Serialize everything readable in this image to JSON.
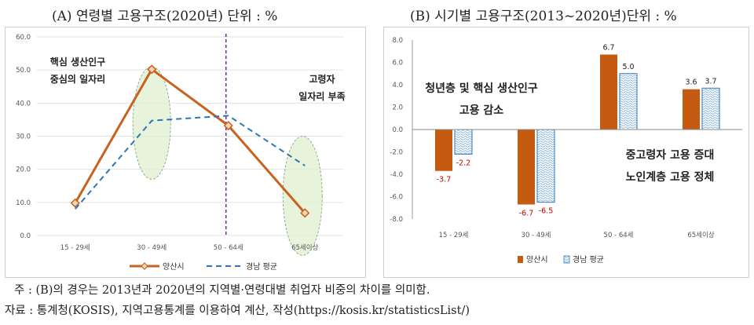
{
  "chart_data": [
    {
      "type": "line",
      "title": "(A) 연령별 고용구조(2020년) 단위 : %",
      "categories": [
        "15 - 29세",
        "30 - 49세",
        "50 - 64세",
        "65세이상"
      ],
      "series": [
        {
          "name": "양산시",
          "values": [
            9.8,
            50.2,
            33.2,
            6.8
          ],
          "color": "#c8621f"
        },
        {
          "name": "경남 평균",
          "values": [
            8.0,
            34.7,
            36.2,
            21.1
          ],
          "color": "#2e75b6"
        }
      ],
      "ylim": [
        0,
        60
      ],
      "yticks": [
        "0.0",
        "10.0",
        "20.0",
        "30.0",
        "40.0",
        "50.0",
        "60.0"
      ],
      "annotations": {
        "core_line1": "핵심 생산인구",
        "core_line2": "중심의 일자리",
        "elder_line1": "고령자",
        "elder_line2": "일자리 부족"
      },
      "legend": {
        "position": "bottom"
      }
    },
    {
      "type": "bar",
      "title": "(B) 시기별 고용구조(2013~2020년)단위 : %",
      "categories": [
        "15 - 29세",
        "30 - 49세",
        "50 - 64세",
        "65세이상"
      ],
      "series": [
        {
          "name": "양산시",
          "values": [
            -3.7,
            -6.7,
            6.7,
            3.6
          ],
          "labels": [
            "-3.7",
            "-6.7",
            "6.7",
            "3.6"
          ],
          "color": "#c55a11"
        },
        {
          "name": "경남 평균",
          "values": [
            -2.2,
            -6.5,
            5.0,
            3.7
          ],
          "labels": [
            "-2.2",
            "-6.5",
            "5.0",
            "3.7"
          ],
          "color": "#2e75b6"
        }
      ],
      "ylim": [
        -8,
        8
      ],
      "yticks": [
        "8.0",
        "6.0",
        "4.0",
        "2.0",
        "0.0",
        "-2.0",
        "-4.0",
        "-6.0",
        "-8.0"
      ],
      "annotations": {
        "youth_line1": "청년층 및 핵심 생산인구",
        "youth_line2": "고용 감소",
        "senior_line1": "중고령자 고용 증대",
        "senior_line2": "노인계층 고용 정체"
      },
      "legend": {
        "position": "bottom"
      }
    }
  ],
  "notes": {
    "note1": "주 : (B)의 경우는 2013년과 2020년의 지역별·연령대별 취업자 비중의 차이를 의미함.",
    "note2": "자료 : 통계청(KOSIS), 지역고용통계를 이용하여 계산, 작성(https://kosis.kr/statisticsList/)"
  }
}
